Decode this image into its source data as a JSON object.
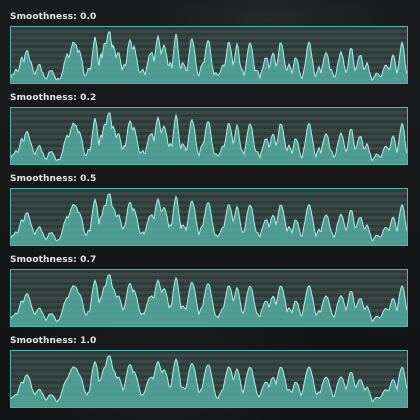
{
  "panels": [
    {
      "label": "Smoothness: 0.0",
      "smoothness": 0.0
    },
    {
      "label": "Smoothness: 0.2",
      "smoothness": 0.2
    },
    {
      "label": "Smoothness: 0.5",
      "smoothness": 0.5
    },
    {
      "label": "Smoothness: 0.7",
      "smoothness": 0.7
    },
    {
      "label": "Smoothness: 1.0",
      "smoothness": 1.0
    }
  ],
  "colors": {
    "graph_fill": "#56b5aa",
    "graph_line": "#a9f0e6",
    "graph_border": "#4fb7ac",
    "graph_bg": "#2f3c3a",
    "stripe": "#394947",
    "label_text": "#e8e8e8"
  }
}
